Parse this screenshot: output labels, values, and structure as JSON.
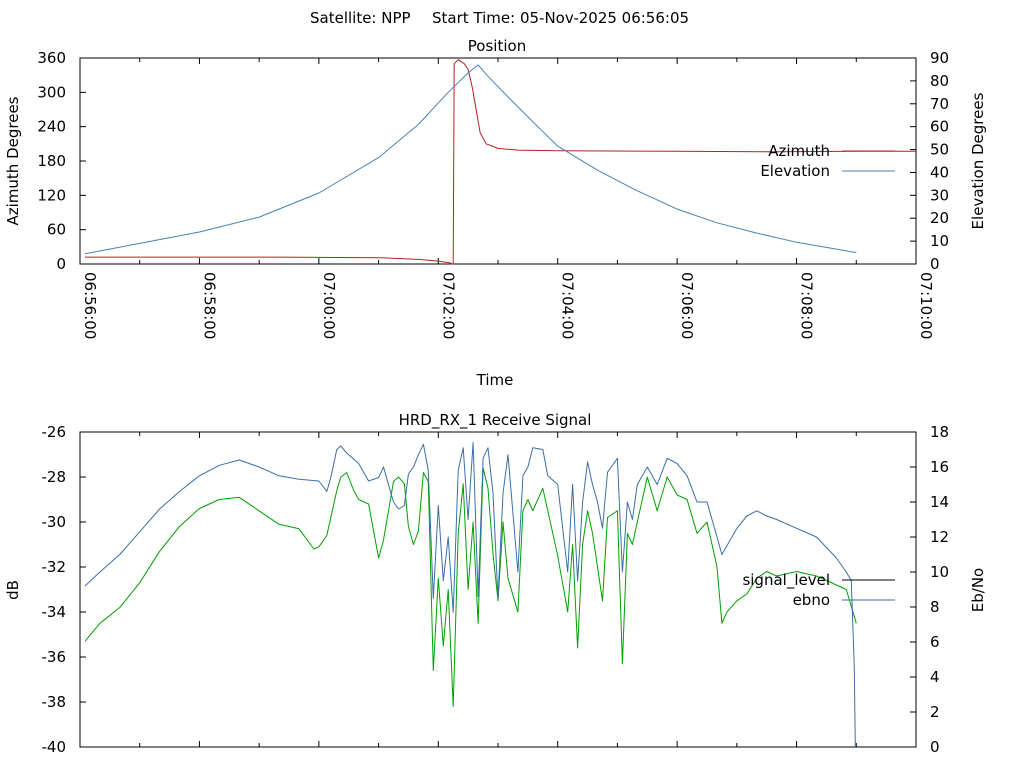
{
  "header": {
    "satellite_label": "Satellite: NPP",
    "start_time_label": "Start Time: 05-Nov-2025 06:56:05"
  },
  "colors": {
    "azimuth": "#b22222",
    "elevation": "#4682b4",
    "signal_level": "#00a000",
    "ebno": "#3a6ea5",
    "legend_signal_level": "#000000",
    "legend_ebno": "#3a6ea5"
  },
  "chart_data": [
    {
      "type": "line",
      "title": "Position",
      "xlabel": "Time",
      "ylabel": "Azimuth Degrees",
      "y2label": "Elevation Degrees",
      "xlim": [
        0,
        840
      ],
      "ylim": [
        0,
        360
      ],
      "y2lim": [
        0,
        90
      ],
      "x_ticks": [
        {
          "t": 0,
          "label": "06:56:00"
        },
        {
          "t": 120,
          "label": "06:58:00"
        },
        {
          "t": 240,
          "label": "07:00:00"
        },
        {
          "t": 360,
          "label": "07:02:00"
        },
        {
          "t": 480,
          "label": "07:04:00"
        },
        {
          "t": 600,
          "label": "07:06:00"
        },
        {
          "t": 720,
          "label": "07:08:00"
        },
        {
          "t": 840,
          "label": "07:10:00"
        }
      ],
      "y_ticks": [
        "0",
        "60",
        "120",
        "180",
        "240",
        "300",
        "360"
      ],
      "y2_ticks": [
        "0",
        "10",
        "20",
        "30",
        "40",
        "50",
        "60",
        "70",
        "80",
        "90"
      ],
      "legend": [
        {
          "name": "Azimuth",
          "color_key": "azimuth"
        },
        {
          "name": "Elevation",
          "color_key": "elevation"
        }
      ],
      "series": [
        {
          "name": "Azimuth",
          "axis": "y1",
          "points": [
            [
              5,
              12
            ],
            [
              100,
              12
            ],
            [
              200,
              12
            ],
            [
              300,
              11
            ],
            [
              340,
              8
            ],
            [
              360,
              5
            ],
            [
              372,
              2
            ],
            [
              374,
              0
            ],
            [
              375,
              0
            ],
            [
              376,
              350
            ],
            [
              380,
              357
            ],
            [
              386,
              350
            ],
            [
              390,
              340
            ],
            [
              394,
              310
            ],
            [
              398,
              270
            ],
            [
              402,
              230
            ],
            [
              408,
              210
            ],
            [
              420,
              202
            ],
            [
              440,
              199
            ],
            [
              480,
              198
            ],
            [
              600,
              197
            ],
            [
              700,
              196
            ],
            [
              784,
              197
            ],
            [
              840,
              197
            ]
          ]
        },
        {
          "name": "Elevation",
          "axis": "y2",
          "points": [
            [
              5,
              4.5
            ],
            [
              60,
              9
            ],
            [
              120,
              14
            ],
            [
              180,
              20.5
            ],
            [
              240,
              31
            ],
            [
              300,
              46.5
            ],
            [
              340,
              61
            ],
            [
              370,
              75
            ],
            [
              390,
              83.5
            ],
            [
              400,
              87
            ],
            [
              410,
              82
            ],
            [
              430,
              73
            ],
            [
              460,
              60
            ],
            [
              480,
              51.5
            ],
            [
              520,
              41
            ],
            [
              560,
              32
            ],
            [
              600,
              24
            ],
            [
              640,
              18
            ],
            [
              680,
              13.5
            ],
            [
              720,
              9.5
            ],
            [
              760,
              6.5
            ],
            [
              780,
              5
            ]
          ]
        }
      ]
    },
    {
      "type": "line",
      "title": "HRD_RX_1 Receive Signal",
      "xlabel": "",
      "ylabel": "dB",
      "y2label": "Eb/No",
      "xlim": [
        0,
        840
      ],
      "ylim": [
        -40,
        -26
      ],
      "y2lim": [
        0,
        18
      ],
      "y_ticks": [
        "-40",
        "-38",
        "-36",
        "-34",
        "-32",
        "-30",
        "-28",
        "-26"
      ],
      "y2_ticks": [
        "0",
        "2",
        "4",
        "6",
        "8",
        "10",
        "12",
        "14",
        "16",
        "18"
      ],
      "legend": [
        {
          "name": "signal_level",
          "color_key": "legend_signal_level"
        },
        {
          "name": "ebno",
          "color_key": "legend_ebno"
        }
      ],
      "series": [
        {
          "name": "signal_level",
          "axis": "y1",
          "points": [
            [
              5,
              -35.3
            ],
            [
              20,
              -34.5
            ],
            [
              40,
              -33.8
            ],
            [
              60,
              -32.7
            ],
            [
              80,
              -31.3
            ],
            [
              100,
              -30.2
            ],
            [
              120,
              -29.4
            ],
            [
              140,
              -29
            ],
            [
              160,
              -28.9
            ],
            [
              180,
              -29.5
            ],
            [
              200,
              -30.1
            ],
            [
              220,
              -30.3
            ],
            [
              235,
              -31.2
            ],
            [
              240,
              -31.1
            ],
            [
              248,
              -30.6
            ],
            [
              252,
              -29.8
            ],
            [
              258,
              -28.6
            ],
            [
              262,
              -28
            ],
            [
              268,
              -27.8
            ],
            [
              275,
              -28.6
            ],
            [
              280,
              -29
            ],
            [
              290,
              -29.2
            ],
            [
              300,
              -31.6
            ],
            [
              305,
              -30.8
            ],
            [
              310,
              -29.5
            ],
            [
              315,
              -28.2
            ],
            [
              320,
              -28
            ],
            [
              326,
              -28.3
            ],
            [
              330,
              -30.2
            ],
            [
              335,
              -31
            ],
            [
              340,
              -30.4
            ],
            [
              345,
              -27.8
            ],
            [
              350,
              -28.2
            ],
            [
              355,
              -36.6
            ],
            [
              360,
              -32.5
            ],
            [
              365,
              -35.5
            ],
            [
              370,
              -33
            ],
            [
              375,
              -38.2
            ],
            [
              380,
              -30.5
            ],
            [
              385,
              -28.3
            ],
            [
              390,
              -33
            ],
            [
              395,
              -30
            ],
            [
              400,
              -34.5
            ],
            [
              405,
              -27.6
            ],
            [
              410,
              -28.5
            ],
            [
              415,
              -31.4
            ],
            [
              420,
              -33.5
            ],
            [
              425,
              -30
            ],
            [
              430,
              -32.5
            ],
            [
              440,
              -34
            ],
            [
              445,
              -29.5
            ],
            [
              450,
              -29
            ],
            [
              455,
              -29.5
            ],
            [
              465,
              -28.5
            ],
            [
              470,
              -29.5
            ],
            [
              480,
              -31.5
            ],
            [
              490,
              -34
            ],
            [
              495,
              -31
            ],
            [
              500,
              -35.6
            ],
            [
              505,
              -31
            ],
            [
              510,
              -29.5
            ],
            [
              515,
              -30.5
            ],
            [
              520,
              -32
            ],
            [
              525,
              -33.5
            ],
            [
              530,
              -29.8
            ],
            [
              540,
              -29.5
            ],
            [
              545,
              -36.3
            ],
            [
              550,
              -30.5
            ],
            [
              555,
              -31
            ],
            [
              560,
              -30
            ],
            [
              570,
              -28
            ],
            [
              580,
              -29.5
            ],
            [
              590,
              -28
            ],
            [
              600,
              -28.8
            ],
            [
              610,
              -29
            ],
            [
              620,
              -30.5
            ],
            [
              630,
              -30
            ],
            [
              640,
              -32
            ],
            [
              645,
              -34.5
            ],
            [
              650,
              -34
            ],
            [
              660,
              -33.5
            ],
            [
              670,
              -33.2
            ],
            [
              680,
              -32.5
            ],
            [
              690,
              -32.2
            ],
            [
              700,
              -32.4
            ],
            [
              720,
              -32.2
            ],
            [
              740,
              -32.4
            ],
            [
              760,
              -32.8
            ],
            [
              770,
              -33
            ],
            [
              780,
              -34.5
            ]
          ]
        },
        {
          "name": "ebno",
          "axis": "y2",
          "points": [
            [
              5,
              9.2
            ],
            [
              20,
              10
            ],
            [
              40,
              11
            ],
            [
              60,
              12.3
            ],
            [
              80,
              13.6
            ],
            [
              100,
              14.6
            ],
            [
              120,
              15.5
            ],
            [
              140,
              16.1
            ],
            [
              160,
              16.4
            ],
            [
              180,
              16
            ],
            [
              200,
              15.5
            ],
            [
              220,
              15.3
            ],
            [
              240,
              15.2
            ],
            [
              248,
              14.6
            ],
            [
              252,
              15.4
            ],
            [
              258,
              17
            ],
            [
              262,
              17.2
            ],
            [
              268,
              16.8
            ],
            [
              272,
              16.6
            ],
            [
              280,
              16.2
            ],
            [
              290,
              15.2
            ],
            [
              300,
              15.4
            ],
            [
              305,
              16
            ],
            [
              310,
              15
            ],
            [
              315,
              14
            ],
            [
              320,
              13.6
            ],
            [
              326,
              13.8
            ],
            [
              330,
              15.6
            ],
            [
              335,
              16
            ],
            [
              340,
              16.7
            ],
            [
              345,
              17.3
            ],
            [
              350,
              15.8
            ],
            [
              355,
              8.5
            ],
            [
              360,
              13.8
            ],
            [
              365,
              9.5
            ],
            [
              370,
              12
            ],
            [
              375,
              7.7
            ],
            [
              380,
              15.8
            ],
            [
              385,
              17.1
            ],
            [
              390,
              13
            ],
            [
              395,
              17.4
            ],
            [
              400,
              8.6
            ],
            [
              405,
              16.5
            ],
            [
              410,
              17.1
            ],
            [
              415,
              14.5
            ],
            [
              420,
              8.5
            ],
            [
              425,
              14.5
            ],
            [
              430,
              16.7
            ],
            [
              440,
              10
            ],
            [
              445,
              15.5
            ],
            [
              450,
              16
            ],
            [
              455,
              17.1
            ],
            [
              465,
              17
            ],
            [
              470,
              15.5
            ],
            [
              480,
              15
            ],
            [
              490,
              10
            ],
            [
              495,
              15
            ],
            [
              500,
              9.5
            ],
            [
              505,
              14
            ],
            [
              510,
              16.3
            ],
            [
              515,
              15
            ],
            [
              520,
              14
            ],
            [
              525,
              12.5
            ],
            [
              530,
              15.7
            ],
            [
              540,
              16.5
            ],
            [
              545,
              10
            ],
            [
              550,
              14
            ],
            [
              555,
              13
            ],
            [
              560,
              15
            ],
            [
              570,
              16
            ],
            [
              580,
              15
            ],
            [
              590,
              16.5
            ],
            [
              600,
              16.2
            ],
            [
              610,
              15.5
            ],
            [
              620,
              14
            ],
            [
              630,
              14
            ],
            [
              640,
              12
            ],
            [
              645,
              11
            ],
            [
              650,
              11.5
            ],
            [
              660,
              12.5
            ],
            [
              670,
              13.2
            ],
            [
              680,
              13.5
            ],
            [
              690,
              13.2
            ],
            [
              700,
              13
            ],
            [
              720,
              12.5
            ],
            [
              740,
              12
            ],
            [
              760,
              10.8
            ],
            [
              770,
              10
            ],
            [
              775,
              9.5
            ],
            [
              778,
              4.5
            ],
            [
              779,
              0
            ]
          ]
        }
      ]
    }
  ]
}
